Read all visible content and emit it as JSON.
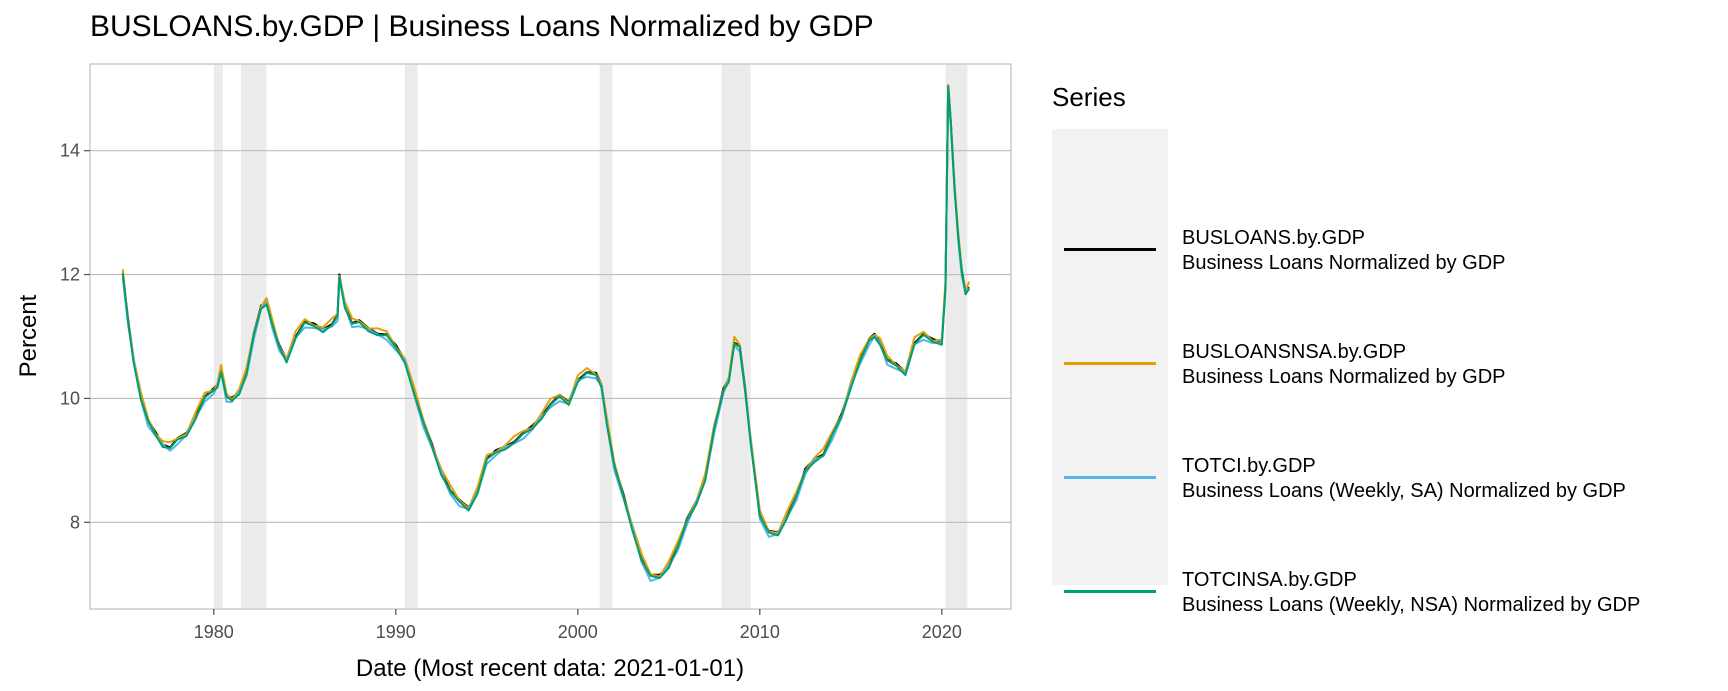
{
  "chart_data": {
    "type": "line",
    "title": "BUSLOANS.by.GDP | Business Loans Normalized by GDP",
    "xlabel": "Date (Most recent data: 2021-01-01)",
    "ylabel": "Percent",
    "xlim": [
      1973.2,
      2023.8
    ],
    "ylim": [
      6.6,
      15.4
    ],
    "x_ticks": [
      1980,
      1990,
      2000,
      2010,
      2020
    ],
    "x_tick_labels": [
      "1980",
      "1990",
      "2000",
      "2010",
      "2020"
    ],
    "y_ticks": [
      8,
      10,
      12,
      14
    ],
    "y_tick_labels": [
      "8",
      "10",
      "12",
      "14"
    ],
    "grid": "horizontal major",
    "legend": {
      "title": "Series",
      "placement": "right"
    },
    "recessions": [
      [
        1980.0,
        1980.5
      ],
      [
        1981.5,
        1982.9
      ],
      [
        1990.5,
        1991.2
      ],
      [
        2001.2,
        2001.9
      ],
      [
        2007.9,
        2009.5
      ],
      [
        2020.2,
        2021.4
      ]
    ],
    "series": [
      {
        "name": "BUSLOANS.by.GDP",
        "desc": "Business Loans Normalized by GDP",
        "color": "#000000",
        "offset": 0.03
      },
      {
        "name": "BUSLOANSNSA.by.GDP",
        "desc": "Business Loans Normalized by GDP",
        "color": "#E69F00",
        "offset": 0.06
      },
      {
        "name": "TOTCI.by.GDP",
        "desc": "Business Loans (Weekly, SA) Normalized by GDP",
        "color": "#56B4E9",
        "offset": -0.02
      },
      {
        "name": "TOTCINSA.by.GDP",
        "desc": "Business Loans (Weekly, NSA) Normalized by GDP",
        "color": "#009E73",
        "offset": 0.0
      }
    ],
    "x": [
      1975.0,
      1975.3,
      1975.6,
      1976.0,
      1976.4,
      1976.8,
      1977.2,
      1977.6,
      1978.0,
      1978.5,
      1979.0,
      1979.5,
      1980.0,
      1980.2,
      1980.4,
      1980.7,
      1981.0,
      1981.4,
      1981.8,
      1982.2,
      1982.6,
      1982.9,
      1983.2,
      1983.6,
      1984.0,
      1984.5,
      1985.0,
      1985.5,
      1986.0,
      1986.5,
      1986.8,
      1986.9,
      1987.2,
      1987.6,
      1988.0,
      1988.5,
      1989.0,
      1989.5,
      1990.0,
      1990.5,
      1991.0,
      1991.5,
      1992.0,
      1992.5,
      1993.0,
      1993.5,
      1994.0,
      1994.5,
      1995.0,
      1995.5,
      1996.0,
      1996.5,
      1997.0,
      1997.5,
      1998.0,
      1998.5,
      1999.0,
      1999.5,
      2000.0,
      2000.5,
      2001.0,
      2001.3,
      2001.6,
      2002.0,
      2002.5,
      2003.0,
      2003.5,
      2004.0,
      2004.5,
      2005.0,
      2005.5,
      2006.0,
      2006.5,
      2007.0,
      2007.5,
      2008.0,
      2008.3,
      2008.6,
      2008.9,
      2009.2,
      2009.5,
      2010.0,
      2010.5,
      2011.0,
      2011.5,
      2012.0,
      2012.5,
      2013.0,
      2013.5,
      2014.0,
      2014.5,
      2015.0,
      2015.5,
      2016.0,
      2016.3,
      2016.6,
      2017.0,
      2017.5,
      2018.0,
      2018.5,
      2019.0,
      2019.5,
      2020.0,
      2020.2,
      2020.35,
      2020.5,
      2020.7,
      2020.9,
      2021.1,
      2021.3,
      2021.5
    ],
    "y": [
      12.0,
      11.2,
      10.6,
      10.0,
      9.6,
      9.4,
      9.25,
      9.2,
      9.3,
      9.4,
      9.7,
      10.0,
      10.1,
      10.2,
      10.45,
      10.0,
      9.95,
      10.1,
      10.4,
      11.0,
      11.45,
      11.55,
      11.2,
      10.8,
      10.6,
      11.0,
      11.2,
      11.15,
      11.1,
      11.2,
      11.3,
      11.95,
      11.5,
      11.2,
      11.2,
      11.1,
      11.05,
      11.0,
      10.8,
      10.6,
      10.1,
      9.6,
      9.2,
      8.8,
      8.5,
      8.3,
      8.2,
      8.5,
      9.0,
      9.1,
      9.2,
      9.3,
      9.4,
      9.5,
      9.7,
      9.9,
      10.0,
      9.9,
      10.3,
      10.4,
      10.35,
      10.2,
      9.6,
      8.9,
      8.4,
      7.9,
      7.4,
      7.1,
      7.1,
      7.3,
      7.6,
      8.0,
      8.3,
      8.7,
      9.5,
      10.1,
      10.3,
      10.9,
      10.8,
      10.1,
      9.3,
      8.1,
      7.8,
      7.8,
      8.1,
      8.4,
      8.8,
      9.0,
      9.1,
      9.4,
      9.7,
      10.2,
      10.6,
      10.9,
      11.0,
      10.9,
      10.6,
      10.5,
      10.4,
      10.9,
      11.0,
      10.9,
      10.9,
      11.8,
      15.0,
      14.4,
      13.4,
      12.6,
      12.0,
      11.7,
      11.8
    ]
  }
}
